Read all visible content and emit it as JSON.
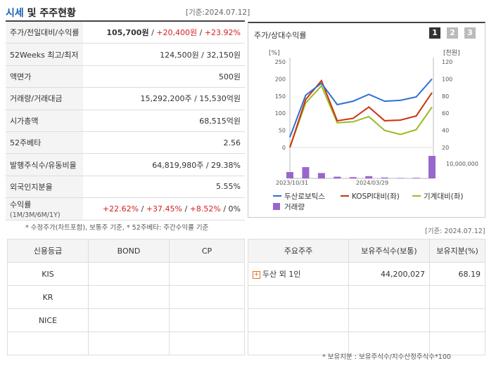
{
  "header": {
    "title_a": "시세",
    "title_b": " 및 주주현황",
    "date": "[기준:2024.07.12]"
  },
  "summary": [
    {
      "label": "주가/전일대비/수익률",
      "v1": "105,700원",
      "sep1": " / ",
      "v2": "+20,400원",
      "sep2": " / ",
      "v3": "+23.92%"
    },
    {
      "label": "52Weeks 최고/최저",
      "value": "124,500원 / 32,150원"
    },
    {
      "label": "액면가",
      "value": "500원"
    },
    {
      "label": "거래량/거래대금",
      "value": "15,292,200주 / 15,530억원"
    },
    {
      "label": "시가총액",
      "value": "68,515억원"
    },
    {
      "label": "52주베타",
      "value": "2.56"
    },
    {
      "label": "발행주식수/유동비율",
      "value": "64,819,980주 / 29.38%"
    },
    {
      "label": "외국인지분율",
      "value": "5.55%"
    },
    {
      "label": "수익률",
      "label_sub": "(1M/3M/6M/1Y)",
      "v1": "+22.62%",
      "v2": "+37.45%",
      "v3": "+8.52%",
      "v4": "0%"
    }
  ],
  "summary_note": "* 수정주가(차트포함), 보통주 기준, * 52주베타: 주간수익률 기준",
  "chart": {
    "title": "주가/상대수익률",
    "buttons": [
      "1",
      "2",
      "3"
    ],
    "date": "[기준: 2024.07.12]",
    "left_unit": "[%]",
    "right_unit": "[천원]",
    "left_ticks": [
      "250",
      "200",
      "150",
      "100",
      "50",
      "0"
    ],
    "right_ticks": [
      "120",
      "100",
      "80",
      "60",
      "40",
      "20"
    ],
    "volume_tick": "10,000,000",
    "x_labels": [
      "2023/10/31",
      "2024/03/29"
    ],
    "legend": [
      "두산로보틱스",
      "KOSPI대비(좌)",
      "기계대비(좌)",
      "거래량"
    ],
    "colors": {
      "stock": "#2f6fd0",
      "kospi": "#cc3311",
      "machine": "#99bb22",
      "volume": "#9966cc"
    }
  },
  "chart_data": {
    "type": "line",
    "title": "주가/상대수익률",
    "series": [
      {
        "name": "두산로보틱스",
        "axis": "right",
        "unit": "천원",
        "values": [
          32,
          81,
          95,
          70,
          74,
          82,
          74,
          75,
          79,
          100
        ]
      },
      {
        "name": "KOSPI대비(좌)",
        "axis": "left",
        "unit": "%",
        "values": [
          0,
          140,
          195,
          78,
          85,
          118,
          78,
          80,
          92,
          160
        ]
      },
      {
        "name": "기계대비(좌)",
        "axis": "left",
        "unit": "%",
        "values": [
          0,
          130,
          180,
          72,
          75,
          90,
          50,
          38,
          52,
          118
        ]
      },
      {
        "name": "거래량",
        "axis": "volume",
        "values": [
          4500000,
          8000000,
          3800000,
          1200000,
          900000,
          1600000,
          600000,
          300000,
          400000,
          16000000
        ]
      }
    ],
    "xlabel_ticks": [
      "2023/10/31",
      "2024/03/29"
    ],
    "ylim_left": [
      0,
      250
    ],
    "ylim_right": [
      20,
      120
    ]
  },
  "credit": {
    "headers": [
      "신용등급",
      "BOND",
      "CP"
    ],
    "rows": [
      [
        "KIS",
        "",
        ""
      ],
      [
        "KR",
        "",
        ""
      ],
      [
        "NICE",
        "",
        ""
      ],
      [
        "",
        "",
        ""
      ]
    ]
  },
  "holders": {
    "headers": [
      "주요주주",
      "보유주식수(보통)",
      "보유지분(%)"
    ],
    "rows": [
      {
        "name": "두산 외 1인",
        "shares": "44,200,027",
        "pct": "68.19"
      }
    ],
    "note": "* 보유지분 : 보유주식수/지수산정주식수*100"
  }
}
